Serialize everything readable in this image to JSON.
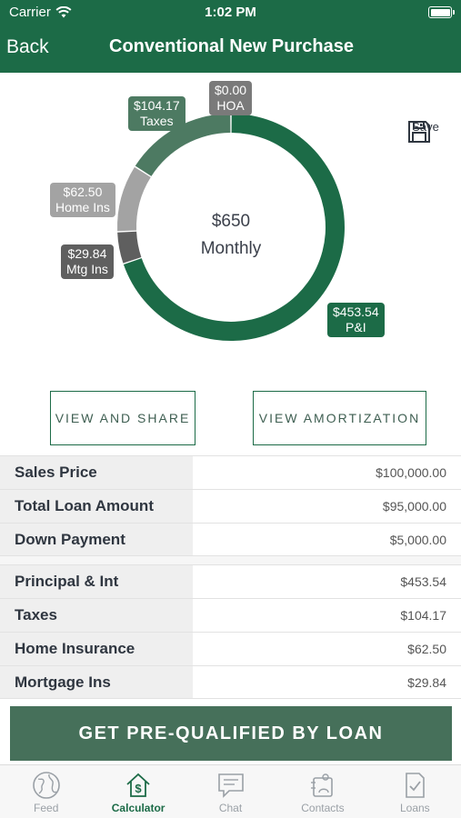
{
  "status_bar": {
    "carrier": "Carrier",
    "time": "1:02 PM"
  },
  "nav": {
    "back_label": "Back",
    "title": "Conventional New Purchase"
  },
  "save": {
    "label": "Save",
    "icon": "floppy-disk-icon"
  },
  "chart_data": {
    "type": "pie",
    "style": "donut",
    "center": {
      "amount": "$650",
      "label": "Monthly"
    },
    "slices": [
      {
        "label": "P&I",
        "value": 453.54,
        "display": "$453.54",
        "color": "#1c6b47"
      },
      {
        "label": "Mtg Ins",
        "value": 29.84,
        "display": "$29.84",
        "color": "#5f5f5f"
      },
      {
        "label": "Home Ins",
        "value": 62.5,
        "display": "$62.50",
        "color": "#a3a3a3"
      },
      {
        "label": "Taxes",
        "value": 104.17,
        "display": "$104.17",
        "color": "#4d7a62"
      },
      {
        "label": "HOA",
        "value": 0.0,
        "display": "$0.00",
        "color": "#7a7a7a"
      }
    ]
  },
  "buttons": {
    "view_share": "VIEW AND SHARE",
    "view_amortization": "VIEW AMORTIZATION"
  },
  "loan_table": [
    {
      "label": "Sales Price",
      "value": "$100,000.00"
    },
    {
      "label": "Total Loan Amount",
      "value": "$95,000.00"
    },
    {
      "label": "Down Payment",
      "value": "$5,000.00"
    }
  ],
  "payment_table": [
    {
      "label": "Principal & Int",
      "value": "$453.54"
    },
    {
      "label": "Taxes",
      "value": "$104.17"
    },
    {
      "label": "Home Insurance",
      "value": "$62.50"
    },
    {
      "label": "Mortgage Ins",
      "value": "$29.84"
    }
  ],
  "cta": {
    "label": "GET PRE-QUALIFIED BY LOAN"
  },
  "tabs": [
    {
      "label": "Feed",
      "icon": "globe-icon",
      "active": false
    },
    {
      "label": "Calculator",
      "icon": "house-dollar-icon",
      "active": true
    },
    {
      "label": "Chat",
      "icon": "chat-bubble-icon",
      "active": false
    },
    {
      "label": "Contacts",
      "icon": "contacts-icon",
      "active": false
    },
    {
      "label": "Loans",
      "icon": "document-check-icon",
      "active": false
    }
  ]
}
